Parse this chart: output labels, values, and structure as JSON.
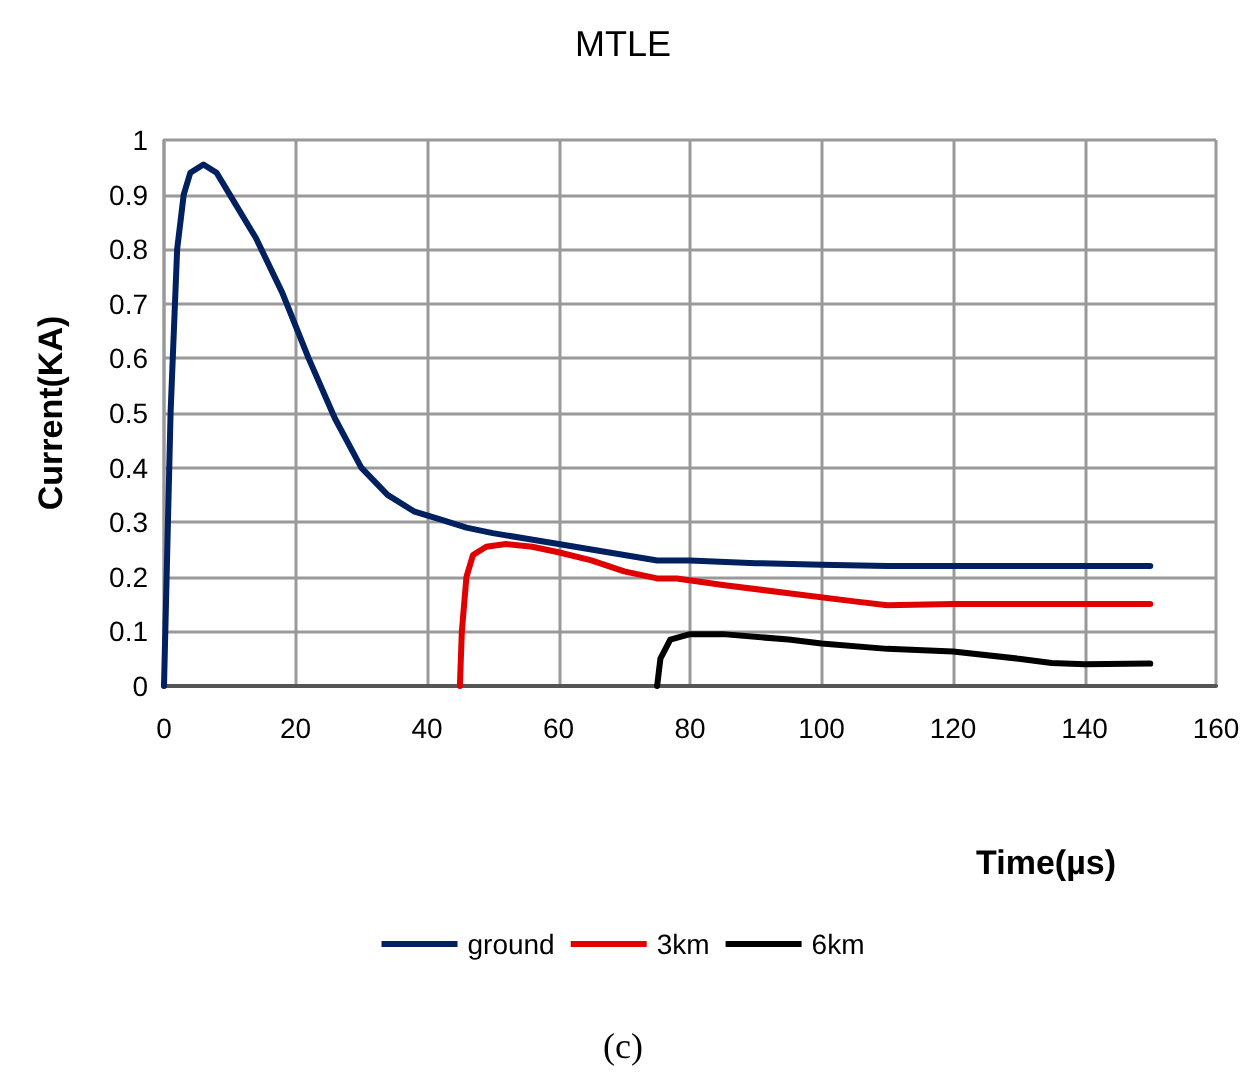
{
  "chart_data": {
    "type": "line",
    "title": "MTLE",
    "xlabel": "Time(µs)",
    "ylabel": "Current(KA)",
    "annotations": [
      "(c)"
    ],
    "xlim": [
      0,
      160
    ],
    "xticks": [
      0,
      20,
      40,
      60,
      80,
      100,
      120,
      140,
      160
    ],
    "ylim": [
      0,
      1
    ],
    "yticks": [
      0,
      0.1,
      0.2,
      0.3,
      0.4,
      0.5,
      0.6,
      0.7,
      0.8,
      0.9,
      1
    ],
    "grid": true,
    "legend": "bottom",
    "marker": "none",
    "line_style": "solid",
    "series": [
      {
        "name": "ground",
        "color": "#002060",
        "x": [
          0,
          1,
          2,
          3,
          4,
          6,
          8,
          10,
          14,
          18,
          22,
          26,
          30,
          34,
          38,
          42,
          46,
          50,
          60,
          70,
          75,
          80,
          90,
          100,
          110,
          120,
          150
        ],
        "values": [
          0,
          0.5,
          0.8,
          0.9,
          0.94,
          0.955,
          0.94,
          0.9,
          0.82,
          0.72,
          0.6,
          0.49,
          0.4,
          0.35,
          0.32,
          0.305,
          0.29,
          0.28,
          0.26,
          0.24,
          0.23,
          0.23,
          0.225,
          0.222,
          0.22,
          0.22,
          0.22
        ]
      },
      {
        "name": "3km",
        "color": "#e00000",
        "x": [
          45,
          45.3,
          46,
          47,
          49,
          52,
          56,
          60,
          65,
          70,
          75,
          78,
          85,
          95,
          105,
          110,
          120,
          150
        ],
        "values": [
          0,
          0.1,
          0.2,
          0.24,
          0.255,
          0.26,
          0.255,
          0.245,
          0.23,
          0.21,
          0.197,
          0.197,
          0.185,
          0.17,
          0.155,
          0.148,
          0.15,
          0.15
        ]
      },
      {
        "name": "6km",
        "color": "#000000",
        "x": [
          75,
          75.5,
          77,
          80,
          85,
          95,
          100,
          110,
          120,
          130,
          135,
          140,
          150
        ],
        "values": [
          0,
          0.05,
          0.085,
          0.095,
          0.095,
          0.085,
          0.078,
          0.068,
          0.063,
          0.05,
          0.042,
          0.04,
          0.041
        ]
      }
    ]
  }
}
